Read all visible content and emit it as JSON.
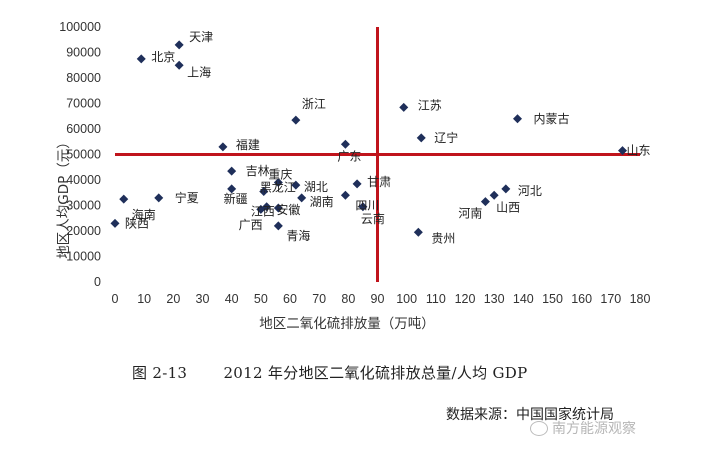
{
  "chart_data": {
    "type": "scatter",
    "xlabel": "地区二氧化硫排放量（万吨）",
    "ylabel": "地区人均GDP（元）",
    "xlim": [
      0,
      180
    ],
    "ylim": [
      0,
      100000
    ],
    "xticks": [
      0,
      10,
      20,
      30,
      40,
      50,
      60,
      70,
      80,
      90,
      100,
      110,
      120,
      130,
      140,
      150,
      160,
      170,
      180
    ],
    "yticks": [
      0,
      10000,
      20000,
      30000,
      40000,
      50000,
      60000,
      70000,
      80000,
      90000,
      100000
    ],
    "reference_lines": {
      "x": 90,
      "y": 50000,
      "color": "#c0141c"
    },
    "marker_color": "#1f2f5a",
    "points": [
      {
        "label": "天津",
        "x": 22,
        "y": 93000
      },
      {
        "label": "北京",
        "x": 9,
        "y": 87500
      },
      {
        "label": "上海",
        "x": 22,
        "y": 85000
      },
      {
        "label": "浙江",
        "x": 62,
        "y": 63500
      },
      {
        "label": "江苏",
        "x": 99,
        "y": 68500
      },
      {
        "label": "内蒙古",
        "x": 138,
        "y": 64000
      },
      {
        "label": "辽宁",
        "x": 105,
        "y": 56500
      },
      {
        "label": "福建",
        "x": 37,
        "y": 53000
      },
      {
        "label": "广东",
        "x": 79,
        "y": 54000
      },
      {
        "label": "山东",
        "x": 174,
        "y": 51500
      },
      {
        "label": "吉林",
        "x": 40,
        "y": 43500
      },
      {
        "label": "重庆",
        "x": 56,
        "y": 39000
      },
      {
        "label": "湖北",
        "x": 62,
        "y": 38000
      },
      {
        "label": "甘肃",
        "x": 83,
        "y": 38500
      },
      {
        "label": "河北",
        "x": 134,
        "y": 36500
      },
      {
        "label": "新疆",
        "x": 40,
        "y": 36500
      },
      {
        "label": "黑龙江",
        "x": 51,
        "y": 35500
      },
      {
        "label": "湖南",
        "x": 64,
        "y": 33000
      },
      {
        "label": "四川",
        "x": 79,
        "y": 34000
      },
      {
        "label": "山西",
        "x": 130,
        "y": 34000
      },
      {
        "label": "河南",
        "x": 127,
        "y": 31500
      },
      {
        "label": "宁夏",
        "x": 15,
        "y": 33000
      },
      {
        "label": "海南",
        "x": 3,
        "y": 32500
      },
      {
        "label": "江西",
        "x": 50,
        "y": 28500
      },
      {
        "label": "安徽",
        "x": 56,
        "y": 29000
      },
      {
        "label": "广西",
        "x": 52,
        "y": 29500
      },
      {
        "label": "云南",
        "x": 85,
        "y": 29500
      },
      {
        "label": "陕西",
        "x": 0,
        "y": 23000
      },
      {
        "label": "青海",
        "x": 56,
        "y": 22000
      },
      {
        "label": "贵州",
        "x": 104,
        "y": 19500
      }
    ]
  },
  "caption": {
    "figure_no": "图 2-13",
    "text": "2012 年分地区二氧化硫排放总量/人均 GDP"
  },
  "source": "数据来源：中国国家统计局",
  "watermark": "南方能源观察"
}
